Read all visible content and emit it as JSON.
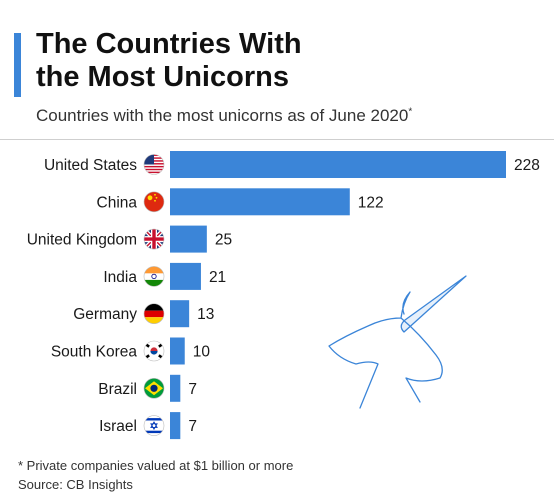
{
  "header": {
    "title_line1": "The Countries With",
    "title_line2": "the Most Unicorns",
    "subtitle": "Countries with the most unicorns as of June 2020",
    "subtitle_mark": "*"
  },
  "footer": {
    "footnote": "* Private companies valued at $1 billion or more",
    "source": "Source: CB Insights"
  },
  "colors": {
    "accent": "#3b85d8",
    "bar": "#3b85d8"
  },
  "chart_data": {
    "type": "bar",
    "orientation": "horizontal",
    "categories": [
      "United States",
      "China",
      "United Kingdom",
      "India",
      "Germany",
      "South Korea",
      "Brazil",
      "Israel"
    ],
    "values": [
      228,
      122,
      25,
      21,
      13,
      10,
      7,
      7
    ],
    "flags": [
      "us-flag-icon",
      "china-flag-icon",
      "uk-flag-icon",
      "india-flag-icon",
      "germany-flag-icon",
      "south-korea-flag-icon",
      "brazil-flag-icon",
      "israel-flag-icon"
    ],
    "xlim": [
      0,
      228
    ],
    "grid": false,
    "legend": "none",
    "data_labels": true
  }
}
